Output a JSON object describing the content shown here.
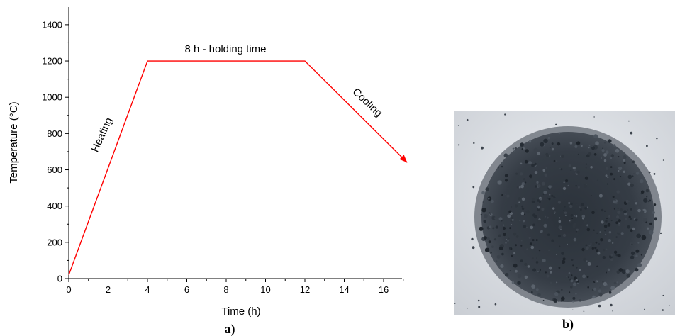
{
  "chart_data": {
    "type": "line",
    "title": "",
    "xlabel": "Time (h)",
    "ylabel": "Temperature (°C)",
    "xlim": [
      0,
      17.3
    ],
    "ylim": [
      0,
      1500
    ],
    "xticks": [
      0,
      2,
      4,
      6,
      8,
      10,
      12,
      14,
      16
    ],
    "yticks": [
      0,
      200,
      400,
      600,
      800,
      1000,
      1200,
      1400
    ],
    "grid": false,
    "series": [
      {
        "color": "#ff0000",
        "x": [
          0,
          4,
          12,
          17.2
        ],
        "y": [
          20,
          1200,
          1200,
          640
        ]
      }
    ],
    "annotations": {
      "heating": "Heating",
      "holding": "8 h - holding time",
      "cooling": "Cooling"
    }
  },
  "captions": {
    "a": "a)",
    "b": "b)"
  },
  "photo": {
    "subject": "black powder pile on white surface"
  }
}
